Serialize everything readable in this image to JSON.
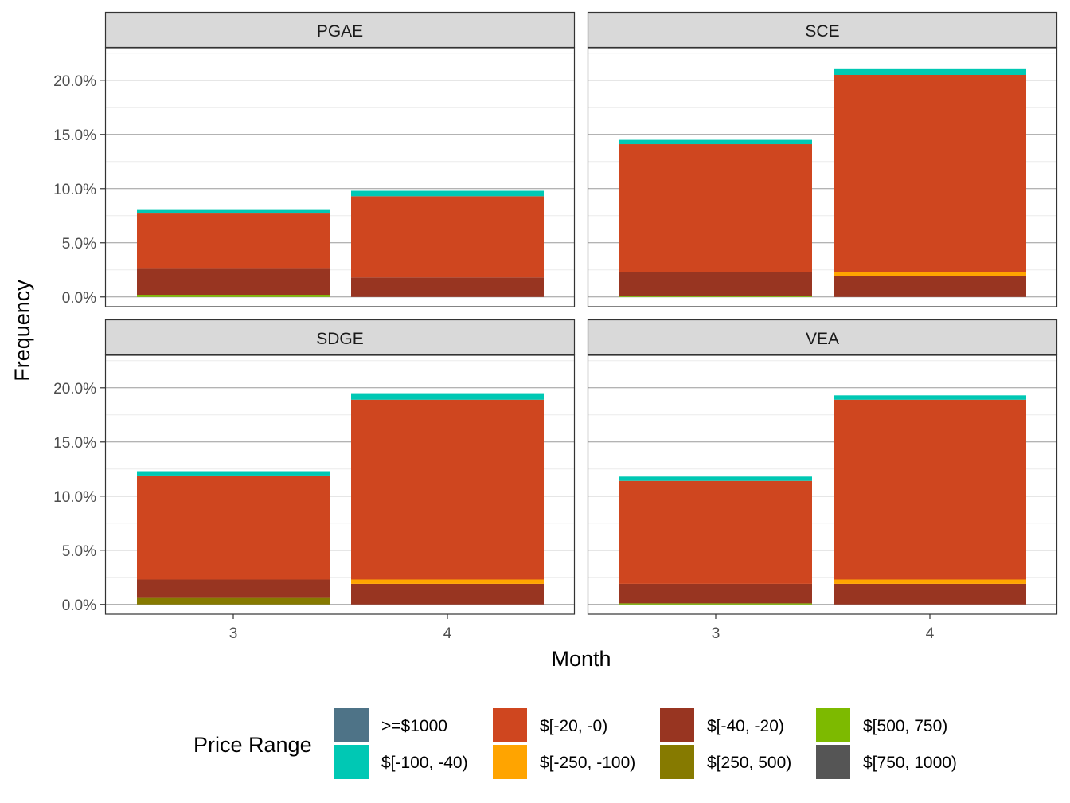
{
  "chart_data": {
    "type": "bar",
    "stacked": true,
    "ylabel": "Frequency",
    "xlabel": "Month",
    "ylim": [
      -0.9,
      23.0
    ],
    "y_ticks": [
      0,
      5,
      10,
      15,
      20
    ],
    "y_tick_labels": [
      "0.0%",
      "5.0%",
      "10.0%",
      "15.0%",
      "20.0%"
    ],
    "categories": [
      "3",
      "4"
    ],
    "grid": true,
    "legend": {
      "title": "Price Range",
      "position": "bottom",
      "items": [
        {
          "key": "ge1000",
          "label": ">=$1000",
          "color": "#4E7387"
        },
        {
          "key": "n100_40",
          "label": "$[-100, -40)",
          "color": "#00C8B4"
        },
        {
          "key": "n20_0",
          "label": "$[-20, -0)",
          "color": "#CF461F"
        },
        {
          "key": "n250_100",
          "label": "$[-250, -100)",
          "color": "#FFA400"
        },
        {
          "key": "n40_20",
          "label": "$[-40, -20)",
          "color": "#983521"
        },
        {
          "key": "p250_500",
          "label": "$[250, 500)",
          "color": "#867A00"
        },
        {
          "key": "p500_750",
          "label": "$[500, 750)",
          "color": "#7DBA00"
        },
        {
          "key": "p750_1000",
          "label": "$[750, 1000)",
          "color": "#555555"
        }
      ]
    },
    "stack_order": [
      "p500_750",
      "p250_500",
      "n40_20",
      "n250_100",
      "n20_0",
      "n100_40"
    ],
    "panels": [
      {
        "title": "PGAE",
        "bars": [
          {
            "month": "3",
            "values": {
              "p500_750": 0.2,
              "p250_500": 0.0,
              "n40_20": 2.4,
              "n250_100": 0.0,
              "n20_0": 5.1,
              "n100_40": 0.4
            }
          },
          {
            "month": "4",
            "values": {
              "p500_750": 0.0,
              "p250_500": 0.0,
              "n40_20": 1.8,
              "n250_100": 0.0,
              "n20_0": 7.5,
              "n100_40": 0.5
            }
          }
        ]
      },
      {
        "title": "SCE",
        "bars": [
          {
            "month": "3",
            "values": {
              "p500_750": 0.1,
              "p250_500": 0.0,
              "n40_20": 2.2,
              "n250_100": 0.0,
              "n20_0": 11.8,
              "n100_40": 0.4
            }
          },
          {
            "month": "4",
            "values": {
              "p500_750": 0.0,
              "p250_500": 0.0,
              "n40_20": 1.9,
              "n250_100": 0.4,
              "n20_0": 18.2,
              "n100_40": 0.6
            }
          }
        ]
      },
      {
        "title": "SDGE",
        "bars": [
          {
            "month": "3",
            "values": {
              "p500_750": 0.0,
              "p250_500": 0.6,
              "n40_20": 1.7,
              "n250_100": 0.0,
              "n20_0": 9.6,
              "n100_40": 0.4
            }
          },
          {
            "month": "4",
            "values": {
              "p500_750": 0.0,
              "p250_500": 0.0,
              "n40_20": 1.9,
              "n250_100": 0.4,
              "n20_0": 16.6,
              "n100_40": 0.6
            }
          }
        ]
      },
      {
        "title": "VEA",
        "bars": [
          {
            "month": "3",
            "values": {
              "p500_750": 0.1,
              "p250_500": 0.0,
              "n40_20": 1.8,
              "n250_100": 0.0,
              "n20_0": 9.5,
              "n100_40": 0.4
            }
          },
          {
            "month": "4",
            "values": {
              "p500_750": 0.0,
              "p250_500": 0.0,
              "n40_20": 1.9,
              "n250_100": 0.4,
              "n20_0": 16.6,
              "n100_40": 0.4
            }
          }
        ]
      }
    ]
  }
}
